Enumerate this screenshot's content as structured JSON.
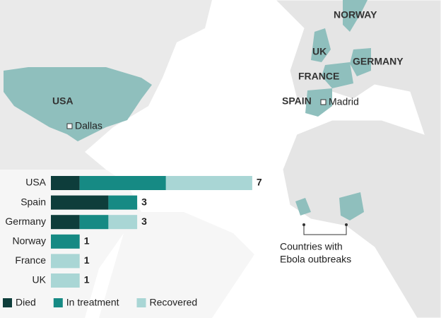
{
  "map_labels": {
    "usa": "USA",
    "dallas": "Dallas",
    "norway": "NORWAY",
    "uk": "UK",
    "germany": "GERMANY",
    "france": "FRANCE",
    "spain": "SPAIN",
    "madrid": "Madrid",
    "outbreaks": [
      "Countries with",
      "Ebola outbreaks"
    ]
  },
  "chart_data": {
    "type": "stacked-bar",
    "categories": [
      "USA",
      "Spain",
      "Germany",
      "Norway",
      "France",
      "UK"
    ],
    "series": [
      {
        "name": "Died",
        "color": "#0e3d3b",
        "values": [
          1,
          2,
          1,
          0,
          0,
          0
        ]
      },
      {
        "name": "In treatment",
        "color": "#168a84",
        "values": [
          3,
          1,
          1,
          1,
          0,
          0
        ]
      },
      {
        "name": "Recovered",
        "color": "#a9d6d5",
        "values": [
          3,
          0,
          1,
          0,
          1,
          1
        ]
      }
    ],
    "totals": [
      7,
      3,
      3,
      1,
      1,
      1
    ]
  }
}
